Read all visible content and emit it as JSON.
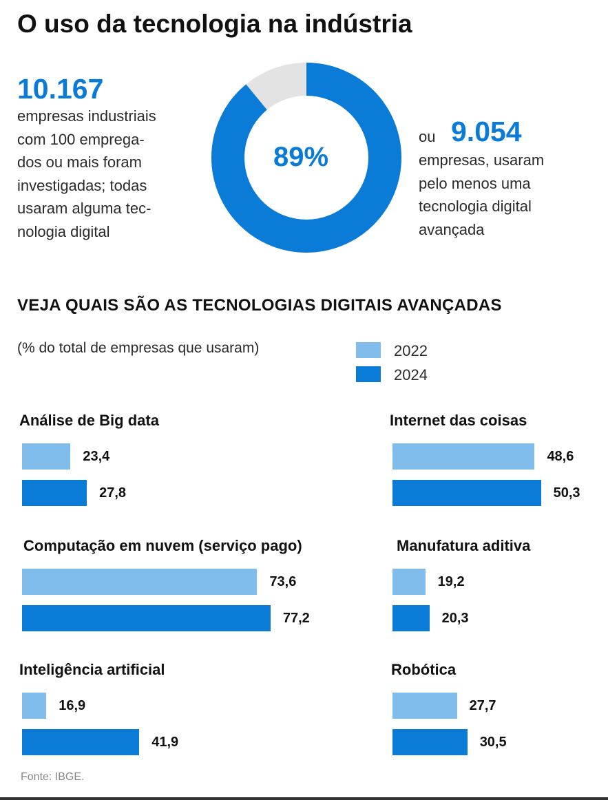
{
  "title": "O uso da tecnologia na indústria",
  "colors": {
    "c2022": "#80bdec",
    "c2024": "#0a7bd6",
    "ring_rest": "#e3e3e3"
  },
  "summary": {
    "total_number": "10.167",
    "total_text": [
      "empresas industriais",
      "com 100 emprega-",
      "dos ou mais foram",
      "investigadas; todas",
      "usaram alguma tec-",
      "nologia digital"
    ],
    "percent_label": "89%",
    "percent_value": 89,
    "ou": "ou",
    "advanced_number": "9.054",
    "advanced_text": [
      "empresas, usaram",
      "pelo menos uma",
      "tecnologia digital",
      "avançada"
    ]
  },
  "chart_data": {
    "type": "bar",
    "title": "VEJA QUAIS SÃO AS TECNOLOGIAS DIGITAIS AVANÇADAS",
    "subtitle": "(% do total de empresas que usaram)",
    "series_names": [
      "2022",
      "2024"
    ],
    "groups": [
      {
        "label": "Análise de Big data",
        "values": [
          23.4,
          27.8
        ],
        "labels": [
          "23,4",
          "27,8"
        ]
      },
      {
        "label": "Internet das coisas",
        "values": [
          48.6,
          50.3
        ],
        "labels": [
          "48,6",
          "50,3"
        ]
      },
      {
        "label": "Computação em nuvem (serviço pago)",
        "values": [
          73.6,
          77.2
        ],
        "labels": [
          "73,6",
          "77,2"
        ]
      },
      {
        "label": "Manufatura aditiva",
        "values": [
          19.2,
          20.3
        ],
        "labels": [
          "19,2",
          "20,3"
        ]
      },
      {
        "label": "Inteligência artificial",
        "values": [
          16.9,
          41.9
        ],
        "labels": [
          "16,9",
          "41,9"
        ]
      },
      {
        "label": "Robótica",
        "values": [
          27.7,
          30.5
        ],
        "labels": [
          "27,7",
          "30,5"
        ]
      }
    ]
  },
  "source": "Fonte: IBGE."
}
